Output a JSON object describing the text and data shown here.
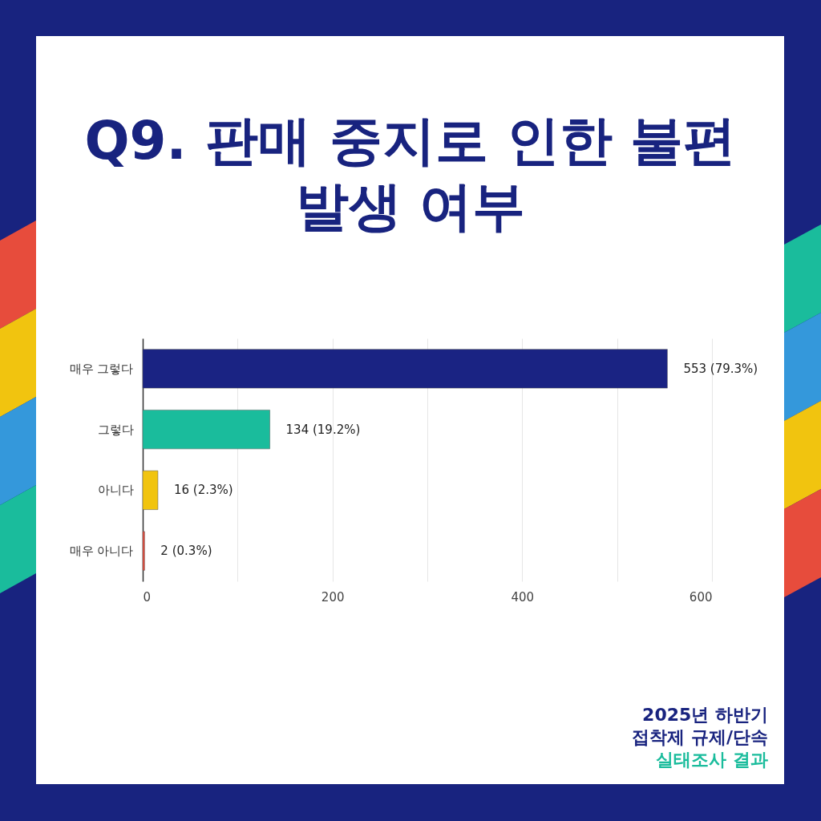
{
  "chart_data": {
    "type": "bar",
    "orientation": "horizontal",
    "title": "Q9. 판매 중지로 인한 불편 발생 여부",
    "categories": [
      "매우 그렇다",
      "그렇다",
      "아니다",
      "매우 아니다"
    ],
    "values": [
      553,
      134,
      16,
      2
    ],
    "colors": [
      "#1a2383",
      "#1abc9c",
      "#f1c40f",
      "#e74c3c"
    ],
    "value_labels": [
      "553 (79.3%)",
      "134 (19.2%)",
      "16 (2.3%)",
      "2 (0.3%)"
    ],
    "xlim": [
      0,
      600
    ],
    "xticks": [
      0,
      {
        "value": 100,
        "label": null
      },
      200,
      {
        "value": 300,
        "label": null
      },
      400,
      {
        "value": 500,
        "label": null
      },
      600
    ],
    "grid": "x",
    "annotations": [
      "2025년 하반기",
      "접착제 규제/단속",
      "실태조사 결과"
    ]
  }
}
